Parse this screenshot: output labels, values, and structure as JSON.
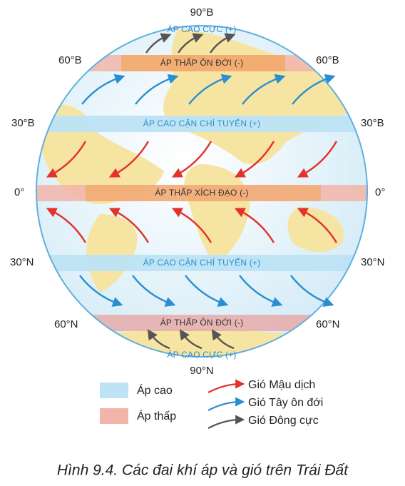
{
  "latitude_labels": [
    "90°B",
    "60°B",
    "60°B",
    "30°B",
    "30°B",
    "0°",
    "0°",
    "30°N",
    "30°N",
    "60°N",
    "60°N",
    "90°N"
  ],
  "pressure_belts": [
    "ÁP CAO CỰC (+)",
    "ÁP THẤP ÔN ĐỚI (-)",
    "ÁP CAO CẬN CHÍ TUYẾN (+)",
    "ÁP THẤP XÍCH ĐẠO (-)",
    "ÁP CAO CẬN CHÍ TUYẾN (+)",
    "ÁP THẤP ÔN ĐỚI (-)",
    "ÁP CAO CỰC (+)"
  ],
  "legend": {
    "pressure": [
      "Áp cao",
      "Áp thấp"
    ],
    "winds": [
      "Gió Mậu dịch",
      "Gió Tây ôn đới",
      "Gió Đông cực"
    ]
  },
  "caption": "Hình 9.4. Các đai khí áp và gió trên Trái Đất"
}
